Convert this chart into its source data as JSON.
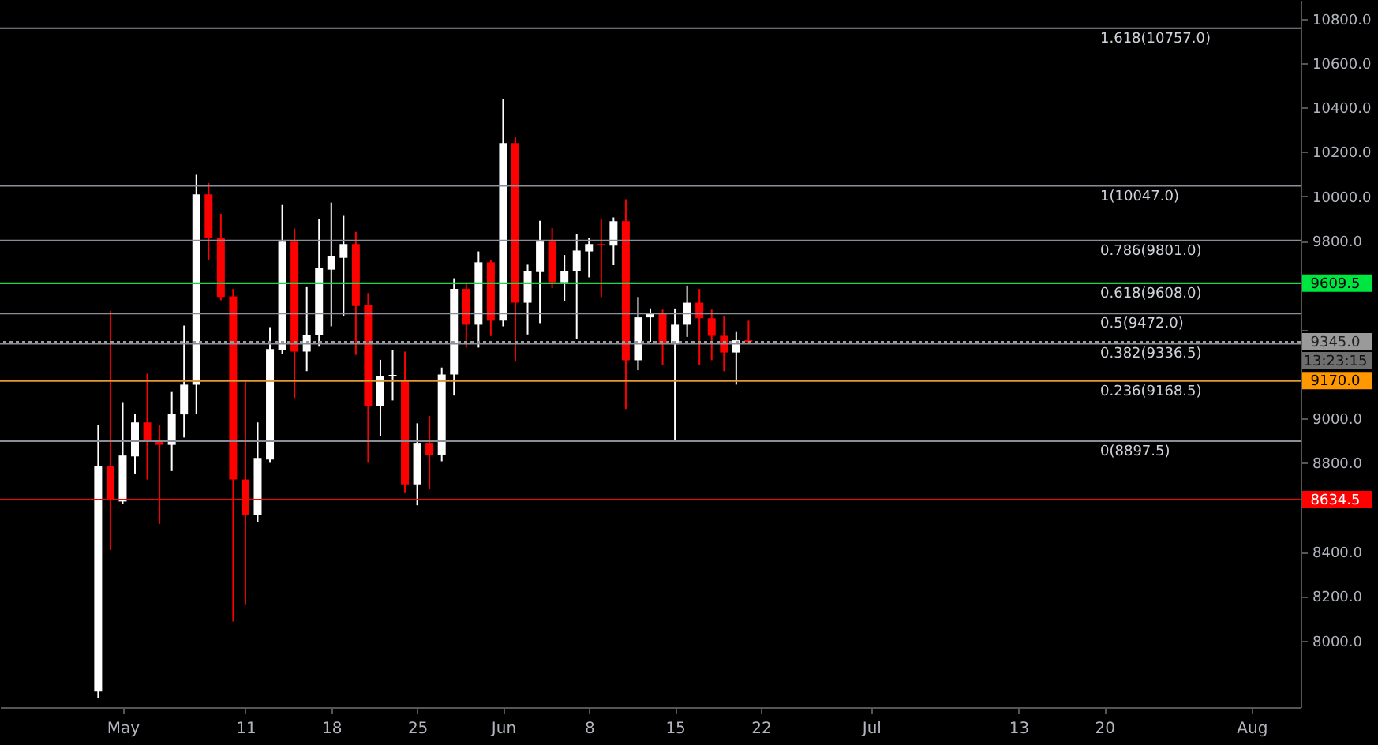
{
  "chart_data": {
    "type": "candlestick",
    "x": [
      "--04-29",
      "--04-30",
      "--05-01",
      "--05-02",
      "--05-03",
      "--05-04",
      "--05-05",
      "--05-06",
      "--05-07",
      "--05-08",
      "--05-09",
      "--05-10",
      "--05-11",
      "--05-12",
      "--05-13",
      "--05-14",
      "--05-15",
      "--05-16",
      "--05-17",
      "--05-18",
      "--05-19",
      "--05-20",
      "--05-21",
      "--05-22",
      "--05-23",
      "--05-24",
      "--05-25",
      "--05-26",
      "--05-27",
      "--05-28",
      "--05-29",
      "--05-30",
      "--05-31",
      "--06-01",
      "--06-02",
      "--06-03",
      "--06-04",
      "--06-05",
      "--06-06",
      "--06-07",
      "--06-08",
      "--06-09",
      "--06-10",
      "--06-11",
      "--06-12",
      "--06-13",
      "--06-14",
      "--06-15",
      "--06-16",
      "--06-17",
      "--06-18",
      "--06-19",
      "--06-20",
      "--06-21"
    ],
    "ohlc": [
      [
        7770,
        8971,
        7740,
        8785
      ],
      [
        8785,
        9484,
        8407,
        8631
      ],
      [
        8626,
        9070,
        8615,
        8833
      ],
      [
        8829,
        9020,
        8752,
        8982
      ],
      [
        8982,
        9202,
        8725,
        8901
      ],
      [
        8905,
        8971,
        8525,
        8881
      ],
      [
        8881,
        9119,
        8763,
        9020
      ],
      [
        9018,
        9418,
        8914,
        9152
      ],
      [
        9152,
        10097,
        9020,
        10009
      ],
      [
        10009,
        10060,
        9714,
        9811
      ],
      [
        9813,
        9921,
        9532,
        9547
      ],
      [
        9550,
        9583,
        8086,
        8725
      ],
      [
        8725,
        9169,
        8163,
        8565
      ],
      [
        8565,
        8982,
        8532,
        8822
      ],
      [
        8815,
        9411,
        8800,
        9312
      ],
      [
        9310,
        9961,
        9290,
        9796
      ],
      [
        9796,
        9855,
        9092,
        9301
      ],
      [
        9301,
        9591,
        9213,
        9374
      ],
      [
        9374,
        9899,
        9323,
        9679
      ],
      [
        9670,
        9972,
        9415,
        9730
      ],
      [
        9723,
        9912,
        9459,
        9785
      ],
      [
        9785,
        9840,
        9286,
        9506
      ],
      [
        9510,
        9565,
        8800,
        9057
      ],
      [
        9057,
        9264,
        8921,
        9190
      ],
      [
        9190,
        9308,
        9081,
        9196
      ],
      [
        9169,
        9301,
        8664,
        8703
      ],
      [
        8703,
        8978,
        8609,
        8890
      ],
      [
        8890,
        9011,
        8681,
        8835
      ],
      [
        8835,
        9229,
        8807,
        9198
      ],
      [
        9198,
        9631,
        9103,
        9583
      ],
      [
        9583,
        9613,
        9319,
        9422
      ],
      [
        9422,
        9752,
        9319,
        9703
      ],
      [
        9703,
        9714,
        9371,
        9440
      ],
      [
        9440,
        10440,
        9415,
        10240
      ],
      [
        10240,
        10268,
        9257,
        9521
      ],
      [
        9521,
        9692,
        9378,
        9664
      ],
      [
        9659,
        9890,
        9429,
        9796
      ],
      [
        9796,
        9857,
        9587,
        9613
      ],
      [
        9613,
        9736,
        9528,
        9664
      ],
      [
        9664,
        9829,
        9356,
        9756
      ],
      [
        9752,
        9813,
        9635,
        9785
      ],
      [
        9785,
        9899,
        9547,
        9780
      ],
      [
        9778,
        9905,
        9690,
        9888
      ],
      [
        9888,
        9987,
        9042,
        9262
      ],
      [
        9262,
        9547,
        9217,
        9455
      ],
      [
        9455,
        9495,
        9345,
        9473
      ],
      [
        9473,
        9490,
        9240,
        9334
      ],
      [
        9334,
        9495,
        8897.5,
        9422
      ],
      [
        9422,
        9598,
        9367,
        9521
      ],
      [
        9521,
        9583,
        9240,
        9451
      ],
      [
        9451,
        9490,
        9262,
        9372
      ],
      [
        9372,
        9462,
        9213,
        9297
      ],
      [
        9297,
        9389,
        9152,
        9352
      ],
      [
        9352,
        9440,
        9340,
        9345
      ]
    ],
    "colors": [
      "#ffffff",
      "#ff0000",
      "#ffffff",
      "#ffffff",
      "#ff0000",
      "#ff0000",
      "#ffffff",
      "#ffffff",
      "#ffffff",
      "#ff0000",
      "#ff0000",
      "#ff0000",
      "#ff0000",
      "#ffffff",
      "#ffffff",
      "#ffffff",
      "#ff0000",
      "#ffffff",
      "#ffffff",
      "#ffffff",
      "#ffffff",
      "#ff0000",
      "#ff0000",
      "#ffffff",
      "#ffffff",
      "#ff0000",
      "#ffffff",
      "#ff0000",
      "#ffffff",
      "#ffffff",
      "#ff0000",
      "#ffffff",
      "#ff0000",
      "#ffffff",
      "#ff0000",
      "#ffffff",
      "#ffffff",
      "#ff0000",
      "#ffffff",
      "#ffffff",
      "#ffffff",
      "#ff0000",
      "#ffffff",
      "#ff0000",
      "#ffffff",
      "#ffffff",
      "#ff0000",
      "#ffffff",
      "#ffffff",
      "#ff0000",
      "#ff0000",
      "#ff0000",
      "#ffffff",
      "#ff0000"
    ],
    "xlim": [
      "--04-21",
      "--08-05"
    ],
    "xticks": [
      {
        "value": "--05-01",
        "label": "May"
      },
      {
        "value": "--05-11",
        "label": "11"
      },
      {
        "value": "--05-18",
        "label": "18"
      },
      {
        "value": "--05-25",
        "label": "25"
      },
      {
        "value": "--06-01",
        "label": "Jun"
      },
      {
        "value": "--06-08",
        "label": "8"
      },
      {
        "value": "--06-15",
        "label": "15"
      },
      {
        "value": "--06-22",
        "label": "22"
      },
      {
        "value": "--07-01",
        "label": "Jul"
      },
      {
        "value": "--07-13",
        "label": "13"
      },
      {
        "value": "--07-20",
        "label": "20"
      },
      {
        "value": "--08-01",
        "label": "Aug"
      }
    ],
    "ylim": [
      7700,
      10884
    ],
    "yticks": [
      {
        "value": 8000,
        "label": "8000.0"
      },
      {
        "value": 8200,
        "label": "8200.0"
      },
      {
        "value": 8400,
        "label": "8400.0"
      },
      {
        "value": 8800,
        "label": "8800.0"
      },
      {
        "value": 9000,
        "label": "9000.0"
      },
      {
        "value": 9400,
        "label": null
      },
      {
        "value": 9800,
        "label": "9800.0"
      },
      {
        "value": 10000,
        "label": "10000.0"
      },
      {
        "value": 10200,
        "label": "10200.0"
      },
      {
        "value": 10400,
        "label": "10400.0"
      },
      {
        "value": 10600,
        "label": "10600.0"
      },
      {
        "value": 10800,
        "label": "10800.0"
      }
    ],
    "ref_lines": [
      {
        "axis": "y",
        "value": 10757,
        "label": "1.618(10757.0)"
      },
      {
        "axis": "y",
        "value": 10047,
        "label": "1(10047.0)"
      },
      {
        "axis": "y",
        "value": 9801,
        "label": "0.786(9801.0)"
      },
      {
        "axis": "y",
        "value": 9608,
        "label": "0.618(9608.0)"
      },
      {
        "axis": "y",
        "value": 9472,
        "label": "0.5(9472.0)"
      },
      {
        "axis": "y",
        "value": 9336.5,
        "label": "0.382(9336.5)"
      },
      {
        "axis": "y",
        "value": 9168.5,
        "label": "0.236(9168.5)"
      },
      {
        "axis": "y",
        "value": 8897.5,
        "label": "0(8897.5)"
      },
      {
        "axis": "y",
        "value": 9609.5,
        "label": "9609.5",
        "color": "#00e640"
      },
      {
        "axis": "y",
        "value": 9170,
        "label": "9170.0",
        "color": "#ff9800"
      },
      {
        "axis": "y",
        "value": 8634.5,
        "label": "8634.5",
        "color": "#ff0000"
      },
      {
        "axis": "y",
        "value": 9345,
        "label": "9345.0",
        "color": "#9a9a9a",
        "line_style": "dotted"
      }
    ],
    "annotations": [
      "13:23:15"
    ]
  }
}
